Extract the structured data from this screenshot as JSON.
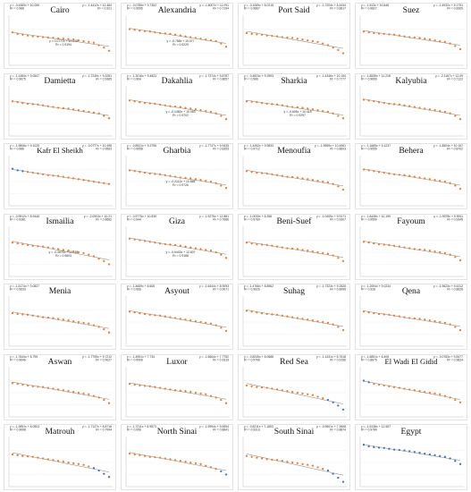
{
  "chart_data": [
    {
      "type": "scatter",
      "title": "Cairo",
      "series": [
        {
          "color": "#ed7d31",
          "values": [
            12.1,
            11.9,
            11.8,
            11.7,
            11.6,
            11.55,
            11.5,
            11.45,
            11.4,
            11.35,
            11.3,
            11.25,
            11.2,
            11.1,
            11.0,
            10.9,
            10.8,
            10.5,
            10.2,
            9.8
          ]
        },
        {
          "color": "#a6a6a6",
          "values": []
        }
      ],
      "annotations": [
        "y = -0.4369x + 10.055",
        "R² = 0.988",
        "y = -1.4412x + 12.484",
        "R² = 0.921",
        "y = 0.0771x + 10.048",
        "R² = 0.9194"
      ]
    },
    {
      "type": "scatter",
      "title": "Alexandria",
      "series": [
        {
          "color": "#ed7d31",
          "values": [
            12.5,
            12.4,
            12.3,
            12.25,
            12.2,
            12.1,
            12.0,
            11.95,
            11.9,
            11.8,
            11.7,
            11.6,
            11.5,
            11.4,
            11.3,
            11.2,
            11.1,
            11.0,
            10.7,
            10.3
          ]
        }
      ],
      "annotations": [
        "y = -0.0785x + 9.7352",
        "R² = 0.9995",
        "y = -1.8007x + 11.091",
        "R² = 0.7194",
        "y = -0.788x + 10.077",
        "R² = 0.9229"
      ]
    },
    {
      "type": "scatter",
      "title": "Port Said",
      "series": [
        {
          "color": "#ed7d31",
          "values": [
            12.0,
            11.9,
            11.85,
            11.8,
            11.7,
            11.65,
            11.6,
            11.5,
            11.45,
            11.4,
            11.3,
            11.2,
            11.1,
            11.0,
            10.9,
            10.7,
            10.5,
            10.2,
            9.9,
            9.5
          ]
        }
      ],
      "annotations": [
        "y = -0.1069x + 8.0215",
        "R² = 0.9867",
        "y = -1.7204x + 8.4434",
        "R² = 0.8817"
      ]
    },
    {
      "type": "scatter",
      "title": "Suez",
      "series": [
        {
          "color": "#ed7d31",
          "values": [
            12.2,
            12.1,
            12.0,
            11.95,
            11.9,
            11.85,
            11.8,
            11.7,
            11.6,
            11.5,
            11.45,
            11.4,
            11.3,
            11.2,
            11.1,
            11.0,
            10.9,
            10.7,
            10.4,
            10.0
          ]
        }
      ],
      "annotations": [
        "y = -1.513x + 9.0446",
        "R² = 0.9827",
        "y = -1.4932x + 9.1791",
        "R² = 0.8305"
      ]
    },
    {
      "type": "scatter",
      "title": "Damietta",
      "series": [
        {
          "color": "#ed7d31",
          "values": [
            12.3,
            12.2,
            12.1,
            12.0,
            11.95,
            11.9,
            11.8,
            11.7,
            11.6,
            11.5,
            11.45,
            11.4,
            11.3,
            11.2,
            11.1,
            11.0,
            10.9,
            10.8,
            10.5,
            10.2
          ]
        }
      ],
      "annotations": [
        "y = -1.1484x + 9.0547",
        "R² = 0.9675",
        "y = -1.7249x + 9.3281",
        "R² = 0.9365"
      ]
    },
    {
      "type": "scatter",
      "title": "Dakahlia",
      "series": [
        {
          "color": "#ed7d31",
          "values": [
            12.4,
            12.3,
            12.2,
            12.1,
            12.05,
            12.0,
            11.9,
            11.8,
            11.7,
            11.65,
            11.6,
            11.5,
            11.4,
            11.3,
            11.2,
            11.1,
            11.0,
            10.8,
            10.5,
            10.1
          ]
        }
      ],
      "annotations": [
        "y = -1.3016x + 9.4823",
        "R² = 0.964",
        "y = -1.7374x + 9.8787",
        "R² = 0.8657",
        "y = -0.1482x + 10.053",
        "R² = 0.9702"
      ]
    },
    {
      "type": "scatter",
      "title": "Sharkia",
      "series": [
        {
          "color": "#ed7d31",
          "values": [
            12.3,
            12.25,
            12.2,
            12.1,
            12.0,
            11.95,
            11.9,
            11.8,
            11.7,
            11.6,
            11.55,
            11.5,
            11.4,
            11.3,
            11.2,
            11.1,
            11.0,
            10.8,
            10.5,
            10.2
          ]
        }
      ],
      "annotations": [
        "y = -0.4823x + 9.2593",
        "R² = 0.966",
        "y = -1.4346x + 10.154",
        "R² = 0.7777",
        "y = -0.605x + 10.418",
        "R² = 0.9297"
      ]
    },
    {
      "type": "scatter",
      "title": "Kalyubia",
      "series": [
        {
          "color": "#ed7d31",
          "values": [
            12.5,
            12.4,
            12.3,
            12.2,
            12.1,
            12.0,
            11.95,
            11.9,
            11.8,
            11.7,
            11.6,
            11.5,
            11.4,
            11.3,
            11.2,
            11.1,
            11.0,
            10.8,
            10.5,
            10.1
          ]
        }
      ],
      "annotations": [
        "y = -1.8535x + 11.218",
        "R² = 0.9699",
        "y = -2.1187x + 12.09",
        "R² = 0.7122"
      ]
    },
    {
      "type": "scatter",
      "title": "Kafr El Sheikh",
      "series": [
        {
          "color": "#4472c4",
          "values": [
            12.6,
            12.4,
            12.3
          ]
        },
        {
          "color": "#ed7d31",
          "values": [
            12.2,
            12.1,
            12.0,
            11.9,
            11.8,
            11.75,
            11.7,
            11.6,
            11.5,
            11.4,
            11.3,
            11.2,
            11.1,
            11.0,
            10.9,
            10.8,
            10.7
          ]
        }
      ],
      "annotations": [
        "y = -1.9806x + 9.1025",
        "R² = 0.986",
        "y = -0.0777x + 10.458",
        "R² = 0.9563"
      ]
    },
    {
      "type": "scatter",
      "title": "Gharbia",
      "series": [
        {
          "color": "#ed7d31",
          "values": [
            12.4,
            12.3,
            12.2,
            12.1,
            12.0,
            11.95,
            11.9,
            11.8,
            11.7,
            11.6,
            11.5,
            11.45,
            11.4,
            11.3,
            11.2,
            11.1,
            11.0,
            10.8,
            10.5,
            10.2
          ]
        }
      ],
      "annotations": [
        "y = -0.8521x + 9.3755",
        "R² = 0.9558",
        "y = -1.7747x + 9.9433",
        "R² = 0.8353",
        "y = -0.2112x + 10.865",
        "R² = 0.9726"
      ]
    },
    {
      "type": "scatter",
      "title": "Menoufia",
      "series": [
        {
          "color": "#ed7d31",
          "values": [
            12.3,
            12.2,
            12.1,
            12.05,
            12.0,
            11.9,
            11.8,
            11.7,
            11.6,
            11.55,
            11.5,
            11.4,
            11.3,
            11.2,
            11.1,
            11.0,
            10.9,
            10.7,
            10.4,
            10.0
          ]
        }
      ],
      "annotations": [
        "y = -1.4452x + 9.9833",
        "R² = 0.9712",
        "y = -1.9959x + 10.4961",
        "R² = 0.8603"
      ]
    },
    {
      "type": "scatter",
      "title": "Behera",
      "series": [
        {
          "color": "#ed7d31",
          "values": [
            12.5,
            12.4,
            12.3,
            12.2,
            12.1,
            12.0,
            11.9,
            11.85,
            11.8,
            11.7,
            11.6,
            11.5,
            11.4,
            11.3,
            11.2,
            11.1,
            11.0,
            10.8,
            10.5,
            10.1
          ]
        }
      ],
      "annotations": [
        "y = -1.1665x + 9.1237",
        "R² = 0.9555",
        "y = -1.8504x + 10.167",
        "R² = 0.8702"
      ]
    },
    {
      "type": "scatter",
      "title": "Ismailia",
      "series": [
        {
          "color": "#ed7d31",
          "values": [
            12.2,
            12.1,
            12.0,
            11.9,
            11.8,
            11.75,
            11.7,
            11.6,
            11.5,
            11.4,
            11.3,
            11.2,
            11.1,
            11.0,
            10.9,
            10.7,
            10.5,
            10.2,
            9.9,
            9.5
          ]
        }
      ],
      "annotations": [
        "y = -0.9512x + 8.9448",
        "R² = 0.9381",
        "y = -2.0903x + 10.21",
        "R² = 0.8682",
        "y = -0.3574x + 10.188",
        "R² = 0.9603"
      ]
    },
    {
      "type": "scatter",
      "title": "Giza",
      "series": [
        {
          "color": "#ed7d31",
          "values": [
            12.7,
            12.6,
            12.5,
            12.4,
            12.3,
            12.2,
            12.1,
            12.0,
            11.95,
            11.9,
            11.8,
            11.7,
            11.6,
            11.5,
            11.4,
            11.3,
            11.2,
            11.0,
            10.7,
            10.3
          ]
        }
      ],
      "annotations": [
        "y = -0.9775x + 10.839",
        "R² = 0.944",
        "y = -1.9275x + 12.881",
        "R² = 0.7686",
        "y = -0.6443x + 12.607",
        "R² = 0.9188"
      ]
    },
    {
      "type": "scatter",
      "title": "Beni-Suef",
      "series": [
        {
          "color": "#ed7d31",
          "values": [
            12.2,
            12.1,
            12.0,
            11.95,
            11.9,
            11.8,
            11.7,
            11.6,
            11.5,
            11.45,
            11.4,
            11.3,
            11.2,
            11.1,
            11.0,
            10.9,
            10.8,
            10.6,
            10.3,
            9.9
          ]
        }
      ],
      "annotations": [
        "y = -1.0033x + 8.355",
        "R² = 0.9769",
        "y = -1.0409x + 9.9171",
        "R² = 0.9307"
      ]
    },
    {
      "type": "scatter",
      "title": "Fayoum",
      "series": [
        {
          "color": "#ed7d31",
          "values": [
            12.3,
            12.2,
            12.1,
            12.0,
            11.95,
            11.9,
            11.8,
            11.7,
            11.6,
            11.5,
            11.4,
            11.35,
            11.3,
            11.2,
            11.1,
            11.0,
            10.9,
            10.7,
            10.4,
            10.0
          ]
        }
      ],
      "annotations": [
        "y = -1.8438x + 10.199",
        "R² = 0.9599",
        "y = -1.9978x + 9.5911",
        "R² = 0.9349"
      ]
    },
    {
      "type": "scatter",
      "title": "Menia",
      "series": [
        {
          "color": "#ed7d31",
          "values": [
            12.1,
            12.0,
            11.95,
            11.9,
            11.8,
            11.7,
            11.6,
            11.55,
            11.5,
            11.4,
            11.3,
            11.2,
            11.1,
            11.0,
            10.9,
            10.8,
            10.6,
            10.4,
            10.1,
            9.7
          ]
        }
      ],
      "annotations": [
        "y = -1.5174x + 9.0827",
        "R² = 0.9633"
      ]
    },
    {
      "type": "scatter",
      "title": "Asyout",
      "series": [
        {
          "color": "#ed7d31",
          "values": [
            12.3,
            12.2,
            12.1,
            12.0,
            11.9,
            11.85,
            11.8,
            11.7,
            11.6,
            11.5,
            11.4,
            11.3,
            11.2,
            11.1,
            11.0,
            10.9,
            10.8,
            10.6,
            10.3,
            9.9
          ]
        }
      ],
      "annotations": [
        "y = -1.4669x + 8.605",
        "R² = 0.956",
        "y = -1.6444x + 8.9093",
        "R² = 0.9071"
      ]
    },
    {
      "type": "scatter",
      "title": "Suhag",
      "series": [
        {
          "color": "#ed7d31",
          "values": [
            12.4,
            12.3,
            12.2,
            12.1,
            12.0,
            11.95,
            11.9,
            11.8,
            11.7,
            11.6,
            11.5,
            11.4,
            11.3,
            11.2,
            11.1,
            11.0,
            10.9,
            10.7,
            10.4,
            10.0
          ]
        }
      ],
      "annotations": [
        "y = -1.4766x + 8.8962",
        "R² = 0.9626",
        "y = -1.7323x + 9.2828",
        "R² = 0.8999"
      ]
    },
    {
      "type": "scatter",
      "title": "Qena",
      "series": [
        {
          "color": "#ed7d31",
          "values": [
            12.3,
            12.2,
            12.1,
            12.0,
            11.95,
            11.9,
            11.8,
            11.7,
            11.6,
            11.5,
            11.45,
            11.4,
            11.3,
            11.2,
            11.1,
            11.0,
            10.9,
            10.7,
            10.4,
            10.0
          ]
        }
      ],
      "annotations": [
        "y = -1.2694x + 9.0234",
        "R² = 0.928",
        "y = -1.9623x + 9.4312",
        "R² = 0.8628"
      ]
    },
    {
      "type": "scatter",
      "title": "Aswan",
      "series": [
        {
          "color": "#ed7d31",
          "values": [
            12.2,
            12.1,
            12.0,
            11.9,
            11.8,
            11.75,
            11.7,
            11.6,
            11.5,
            11.4,
            11.3,
            11.2,
            11.1,
            11.0,
            10.9,
            10.8,
            10.6,
            10.4,
            10.1,
            9.7
          ]
        }
      ],
      "annotations": [
        "y = -1.7644x + 8.799",
        "R² = 0.9646",
        "y = -1.7795x + 9.7212",
        "R² = 0.9027"
      ]
    },
    {
      "type": "scatter",
      "title": "Luxor",
      "series": [
        {
          "color": "#ed7d31",
          "values": [
            12.1,
            12.0,
            11.9,
            11.85,
            11.8,
            11.7,
            11.6,
            11.5,
            11.4,
            11.3,
            11.25,
            11.2,
            11.1,
            11.0,
            10.9,
            10.8,
            10.6,
            10.4,
            10.1,
            9.7
          ]
        }
      ],
      "annotations": [
        "y = -1.4951x + 7.734",
        "R² = 0.9506",
        "y = -1.5664x + 7.7752",
        "R² = 0.9319"
      ]
    },
    {
      "type": "scatter",
      "title": "Red Sea",
      "series": [
        {
          "color": "#ed7d31",
          "values": [
            11.9,
            11.8,
            11.7,
            11.65,
            11.6,
            11.5,
            11.4,
            11.3,
            11.2,
            11.1,
            11.0,
            10.9,
            10.8,
            10.7,
            10.5,
            10.3
          ]
        },
        {
          "color": "#4472c4",
          "values": [
            10.1,
            9.8,
            9.4,
            8.9
          ]
        }
      ],
      "annotations": [
        "y = -0.8245x + 8.0688",
        "R² = 0.9766",
        "y = -1.1431x + 8.7618",
        "R² = 0.9156"
      ]
    },
    {
      "type": "scatter",
      "title": "El Wadi El Gidid",
      "series": [
        {
          "color": "#4472c4",
          "values": [
            12.5,
            12.3
          ]
        },
        {
          "color": "#ed7d31",
          "values": [
            12.1,
            12.0,
            11.9,
            11.8,
            11.7,
            11.6,
            11.5,
            11.4,
            11.3,
            11.2,
            11.1,
            11.0,
            10.9,
            10.8,
            10.6,
            10.4,
            10.1,
            9.8
          ]
        }
      ],
      "annotations": [
        "y = -1.6851x + 8.406",
        "R² = 0.8875",
        "y = -0.0783x + 9.8477",
        "R² = 0.9824"
      ]
    },
    {
      "type": "scatter",
      "title": "Matrouh",
      "series": [
        {
          "color": "#ed7d31",
          "values": [
            12.0,
            11.9,
            11.8,
            11.75,
            11.7,
            11.6,
            11.5,
            11.4,
            11.3,
            11.2,
            11.1,
            11.0,
            10.9,
            10.8,
            10.7,
            10.5
          ]
        },
        {
          "color": "#4472c4",
          "values": [
            10.3,
            10.0,
            9.6,
            9.2
          ]
        }
      ],
      "annotations": [
        "y = -1.2851x + 8.0503",
        "R² = 0.9608",
        "y = -1.7127x + 8.8716",
        "R² = 0.7994"
      ]
    },
    {
      "type": "scatter",
      "title": "North Sinai",
      "series": [
        {
          "color": "#ed7d31",
          "values": [
            12.1,
            12.0,
            11.9,
            11.8,
            11.7,
            11.65,
            11.6,
            11.5,
            11.4,
            11.3,
            11.2,
            11.1,
            11.0,
            10.9,
            10.8,
            10.6,
            10.4,
            10.2
          ]
        },
        {
          "color": "#4472c4",
          "values": [
            9.9,
            9.5
          ]
        }
      ],
      "annotations": [
        "y = -1.7211x + 8.9873",
        "R² = 0.956",
        "y = -1.9994x + 9.5994",
        "R² = 0.8841"
      ]
    },
    {
      "type": "scatter",
      "title": "South Sinai",
      "series": [
        {
          "color": "#ed7d31",
          "values": [
            11.8,
            11.7,
            11.6,
            11.5,
            11.4,
            11.35,
            11.3,
            11.2,
            11.1,
            11.0,
            10.9,
            10.8,
            10.7,
            10.6,
            10.4,
            10.2
          ]
        },
        {
          "color": "#4472c4",
          "values": [
            10.0,
            9.6,
            9.1,
            8.6
          ]
        }
      ],
      "annotations": [
        "y = -0.8211x + 7.1853",
        "R² = 0.9313",
        "y = -0.9501x + 7.3608",
        "R² = 0.8874"
      ]
    },
    {
      "type": "scatter",
      "title": "Egypt",
      "series": [
        {
          "color": "#4472c4",
          "values": [
            13.2,
            13.0,
            12.9,
            12.85,
            12.8,
            12.7,
            12.6,
            12.55,
            12.5,
            12.4,
            12.3,
            12.2,
            12.1,
            12.0,
            11.9,
            11.8,
            11.7,
            11.5,
            11.2,
            10.8
          ]
        }
      ],
      "annotations": [
        "y = -1.5138x + 12.557",
        "R² = 0.9789"
      ]
    }
  ]
}
